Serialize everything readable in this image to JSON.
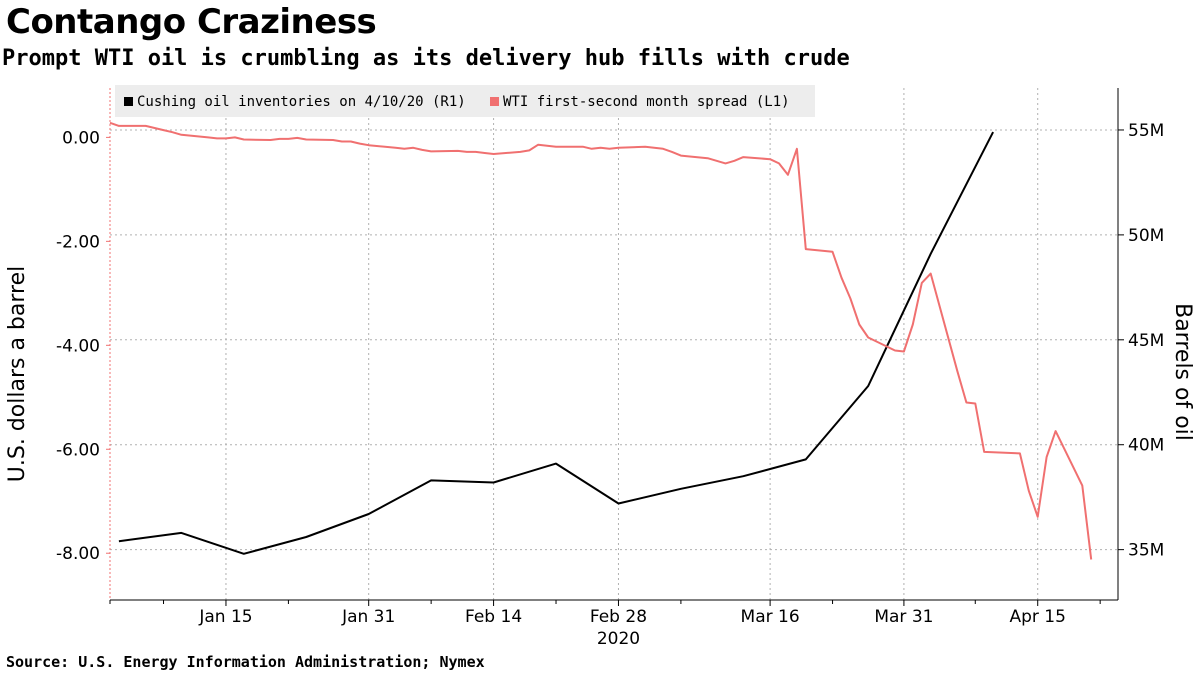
{
  "header": {
    "title": "Contango Craziness",
    "subtitle": "Prompt WTI oil is crumbling as its delivery hub fills with crude"
  },
  "footer": {
    "source": "Source: U.S. Energy Information Administration; Nymex"
  },
  "chart_data": {
    "type": "line",
    "ylabel_left": "U.S. dollars a barrel",
    "ylabel_right": "Barrels of oil",
    "x_tick_labels": [
      "Jan 15",
      "Jan 31",
      "Feb 14",
      "Feb 28",
      "Mar 16",
      "Mar 31",
      "Apr 15"
    ],
    "x_year_label": "2020",
    "x_range": [
      "2020-01-02",
      "2020-04-24"
    ],
    "y_left_ticks": [
      "0.00",
      "-2.00",
      "-4.00",
      "-6.00",
      "-8.00"
    ],
    "y_left_range": [
      -8.9,
      0.95
    ],
    "y_right_ticks": [
      "55M",
      "50M",
      "45M",
      "40M",
      "35M"
    ],
    "y_right_range": [
      32.6,
      57.0
    ],
    "grid": true,
    "legend_position": "top-left",
    "colors": {
      "inventory": "#000000",
      "spread": "#f07070",
      "grid": "#b0b0b0",
      "legend_bg": "#ededed"
    },
    "series": [
      {
        "name": "Cushing oil inventories on 4/10/20 (R1)",
        "axis": "right",
        "color": "#000000",
        "points": [
          [
            "2020-01-03",
            35.4
          ],
          [
            "2020-01-10",
            35.8
          ],
          [
            "2020-01-17",
            34.8
          ],
          [
            "2020-01-24",
            35.6
          ],
          [
            "2020-01-31",
            36.7
          ],
          [
            "2020-02-07",
            38.3
          ],
          [
            "2020-02-14",
            38.2
          ],
          [
            "2020-02-21",
            39.1
          ],
          [
            "2020-02-28",
            37.2
          ],
          [
            "2020-03-06",
            37.9
          ],
          [
            "2020-03-13",
            38.5
          ],
          [
            "2020-03-20",
            39.3
          ],
          [
            "2020-03-27",
            42.8
          ],
          [
            "2020-04-03",
            49.1
          ],
          [
            "2020-04-10",
            54.9
          ]
        ]
      },
      {
        "name": "WTI first-second month spread (L1)",
        "axis": "left",
        "color": "#f07070",
        "points": [
          [
            "2020-01-02",
            0.28
          ],
          [
            "2020-01-03",
            0.22
          ],
          [
            "2020-01-06",
            0.22
          ],
          [
            "2020-01-07",
            0.18
          ],
          [
            "2020-01-08",
            0.14
          ],
          [
            "2020-01-09",
            0.1
          ],
          [
            "2020-01-10",
            0.05
          ],
          [
            "2020-01-13",
            0.0
          ],
          [
            "2020-01-14",
            -0.02
          ],
          [
            "2020-01-15",
            -0.02
          ],
          [
            "2020-01-16",
            0.0
          ],
          [
            "2020-01-17",
            -0.04
          ],
          [
            "2020-01-20",
            -0.05
          ],
          [
            "2020-01-21",
            -0.03
          ],
          [
            "2020-01-22",
            -0.03
          ],
          [
            "2020-01-23",
            -0.01
          ],
          [
            "2020-01-24",
            -0.04
          ],
          [
            "2020-01-27",
            -0.05
          ],
          [
            "2020-01-28",
            -0.08
          ],
          [
            "2020-01-29",
            -0.08
          ],
          [
            "2020-01-30",
            -0.12
          ],
          [
            "2020-01-31",
            -0.15
          ],
          [
            "2020-02-03",
            -0.2
          ],
          [
            "2020-02-04",
            -0.22
          ],
          [
            "2020-02-05",
            -0.2
          ],
          [
            "2020-02-06",
            -0.24
          ],
          [
            "2020-02-07",
            -0.27
          ],
          [
            "2020-02-10",
            -0.26
          ],
          [
            "2020-02-11",
            -0.28
          ],
          [
            "2020-02-12",
            -0.28
          ],
          [
            "2020-02-13",
            -0.3
          ],
          [
            "2020-02-14",
            -0.32
          ],
          [
            "2020-02-17",
            -0.28
          ],
          [
            "2020-02-18",
            -0.25
          ],
          [
            "2020-02-19",
            -0.14
          ],
          [
            "2020-02-20",
            -0.16
          ],
          [
            "2020-02-21",
            -0.18
          ],
          [
            "2020-02-24",
            -0.18
          ],
          [
            "2020-02-25",
            -0.22
          ],
          [
            "2020-02-26",
            -0.2
          ],
          [
            "2020-02-27",
            -0.22
          ],
          [
            "2020-02-28",
            -0.2
          ],
          [
            "2020-03-02",
            -0.18
          ],
          [
            "2020-03-03",
            -0.2
          ],
          [
            "2020-03-04",
            -0.22
          ],
          [
            "2020-03-05",
            -0.28
          ],
          [
            "2020-03-06",
            -0.35
          ],
          [
            "2020-03-09",
            -0.4
          ],
          [
            "2020-03-10",
            -0.45
          ],
          [
            "2020-03-11",
            -0.5
          ],
          [
            "2020-03-12",
            -0.45
          ],
          [
            "2020-03-13",
            -0.38
          ],
          [
            "2020-03-16",
            -0.42
          ],
          [
            "2020-03-17",
            -0.5
          ],
          [
            "2020-03-18",
            -0.72
          ],
          [
            "2020-03-19",
            -0.22
          ],
          [
            "2020-03-20",
            -2.15
          ],
          [
            "2020-03-23",
            -2.2
          ],
          [
            "2020-03-24",
            -2.7
          ],
          [
            "2020-03-25",
            -3.1
          ],
          [
            "2020-03-26",
            -3.6
          ],
          [
            "2020-03-27",
            -3.85
          ],
          [
            "2020-03-30",
            -4.1
          ],
          [
            "2020-03-31",
            -4.12
          ],
          [
            "2020-04-01",
            -3.6
          ],
          [
            "2020-04-02",
            -2.8
          ],
          [
            "2020-04-03",
            -2.62
          ],
          [
            "2020-04-06",
            -4.5
          ],
          [
            "2020-04-07",
            -5.1
          ],
          [
            "2020-04-08",
            -5.12
          ],
          [
            "2020-04-09",
            -6.05
          ],
          [
            "2020-04-13",
            -6.08
          ],
          [
            "2020-04-14",
            -6.8
          ],
          [
            "2020-04-15",
            -7.3
          ],
          [
            "2020-04-16",
            -6.15
          ],
          [
            "2020-04-17",
            -5.65
          ],
          [
            "2020-04-20",
            -6.7
          ],
          [
            "2020-04-21",
            -8.12
          ]
        ]
      }
    ]
  }
}
